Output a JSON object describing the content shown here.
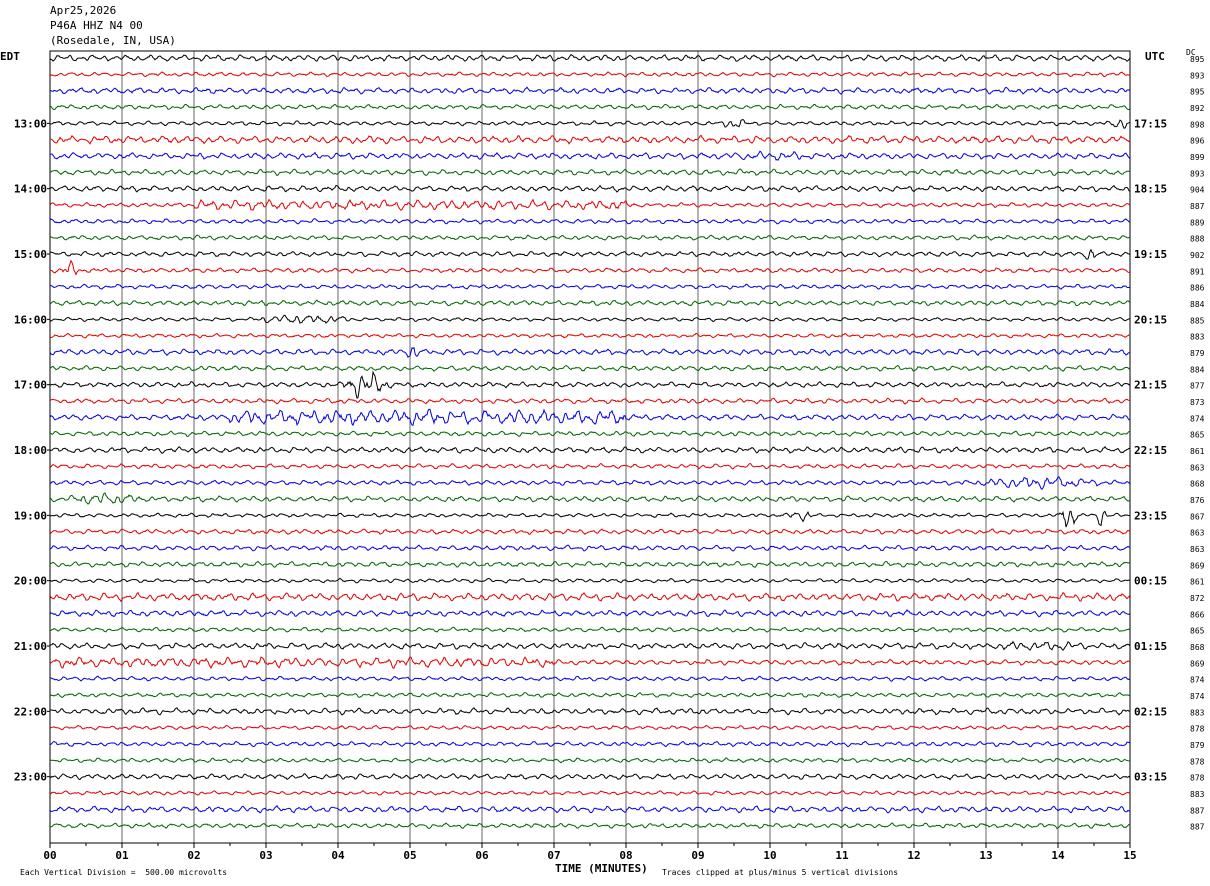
{
  "header": {
    "date": "Apr25,2026",
    "station": "P46A HHZ N4 00",
    "location": "(Rosedale, IN, USA)"
  },
  "left_zone_label": "EDT",
  "right_zone_label": "UTC",
  "dc_label": "DC",
  "footer": {
    "left": "Each Vertical Division =  500.00 microvolts",
    "right": "Traces clipped at plus/minus 5 vertical divisions"
  },
  "chart_data": {
    "type": "line",
    "title": "",
    "xlabel": "TIME (MINUTES)",
    "ylabel": "",
    "xlim": [
      0,
      15
    ],
    "x_ticks": [
      "00",
      "01",
      "02",
      "03",
      "04",
      "05",
      "06",
      "07",
      "08",
      "09",
      "10",
      "11",
      "12",
      "13",
      "14",
      "15"
    ],
    "trace_count": 48,
    "trace_minutes": 15,
    "trace_colors": [
      "#000000",
      "#e00000",
      "#0000e0",
      "#006400"
    ],
    "left_hour_labels": [
      "13:00",
      "14:00",
      "15:00",
      "16:00",
      "17:00",
      "18:00",
      "19:00",
      "20:00",
      "21:00",
      "22:00",
      "23:00"
    ],
    "right_hour_labels": [
      "17:15",
      "18:15",
      "19:15",
      "20:15",
      "21:15",
      "22:15",
      "23:15",
      "00:15",
      "01:15",
      "02:15",
      "03:15"
    ],
    "hour_label_first_trace": 4,
    "traces_per_hour": 4,
    "dc_offsets": [
      895,
      893,
      895,
      892,
      898,
      896,
      899,
      893,
      904,
      887,
      889,
      888,
      902,
      891,
      886,
      884,
      885,
      883,
      879,
      884,
      877,
      873,
      874,
      865,
      861,
      863,
      868,
      876,
      867,
      863,
      863,
      869,
      861,
      872,
      866,
      865,
      868,
      869,
      874,
      874,
      883,
      878,
      879,
      878,
      878,
      883,
      887,
      887
    ],
    "events": [
      {
        "trace": 4,
        "start_min": 9.3,
        "end_min": 9.7,
        "amp": 6
      },
      {
        "trace": 4,
        "start_min": 14.7,
        "end_min": 15.0,
        "amp": 6
      },
      {
        "trace": 5,
        "start_min": 0.0,
        "end_min": 15.0,
        "amp": 3
      },
      {
        "trace": 6,
        "start_min": 9.0,
        "end_min": 11.0,
        "amp": 4
      },
      {
        "trace": 6,
        "start_min": 0.0,
        "end_min": 15.0,
        "amp": 2.5
      },
      {
        "trace": 9,
        "start_min": 2.0,
        "end_min": 8.0,
        "amp": 4
      },
      {
        "trace": 12,
        "start_min": 14.3,
        "end_min": 14.6,
        "amp": 6
      },
      {
        "trace": 13,
        "start_min": 0.1,
        "end_min": 0.5,
        "amp": 7
      },
      {
        "trace": 16,
        "start_min": 2.5,
        "end_min": 4.5,
        "amp": 4
      },
      {
        "trace": 18,
        "start_min": 4.9,
        "end_min": 5.2,
        "amp": 7
      },
      {
        "trace": 20,
        "start_min": 4.0,
        "end_min": 4.8,
        "amp": 11
      },
      {
        "trace": 22,
        "start_min": 2.5,
        "end_min": 8.0,
        "amp": 6
      },
      {
        "trace": 26,
        "start_min": 12.5,
        "end_min": 15.0,
        "amp": 5
      },
      {
        "trace": 27,
        "start_min": 0.0,
        "end_min": 1.5,
        "amp": 5
      },
      {
        "trace": 28,
        "start_min": 10.2,
        "end_min": 10.7,
        "amp": 5
      },
      {
        "trace": 28,
        "start_min": 14.0,
        "end_min": 14.3,
        "amp": 12
      },
      {
        "trace": 28,
        "start_min": 14.5,
        "end_min": 14.7,
        "amp": 9
      },
      {
        "trace": 33,
        "start_min": 0.0,
        "end_min": 15.0,
        "amp": 3
      },
      {
        "trace": 36,
        "start_min": 12.5,
        "end_min": 15.0,
        "amp": 4
      },
      {
        "trace": 37,
        "start_min": 0.0,
        "end_min": 7.0,
        "amp": 4
      }
    ]
  }
}
